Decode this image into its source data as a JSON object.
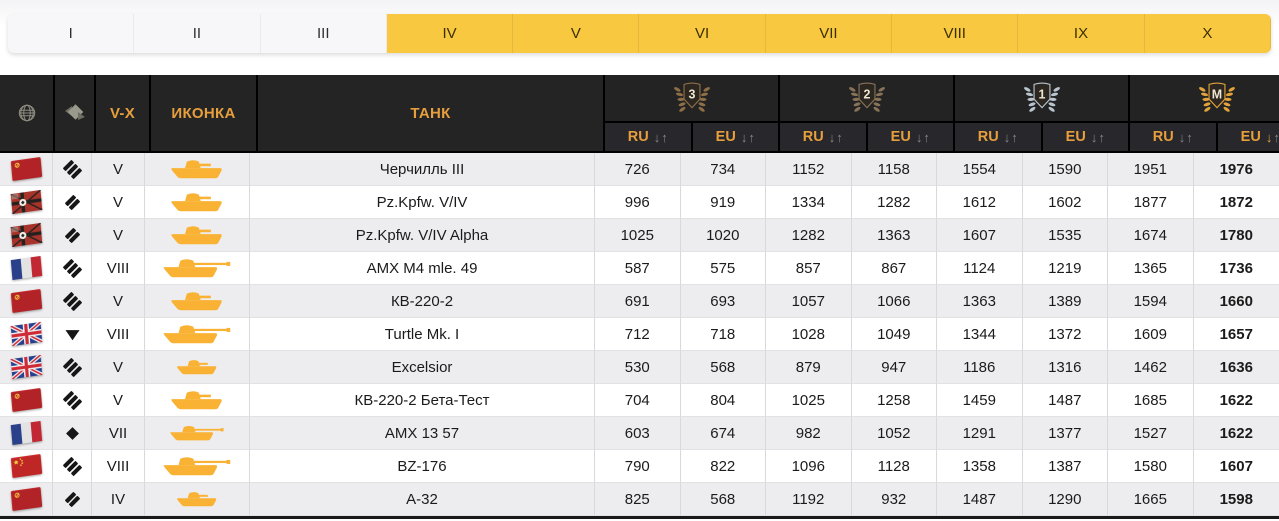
{
  "tabs": [
    {
      "label": "I",
      "active": false
    },
    {
      "label": "II",
      "active": false
    },
    {
      "label": "III",
      "active": false
    },
    {
      "label": "IV",
      "active": true
    },
    {
      "label": "V",
      "active": true
    },
    {
      "label": "VI",
      "active": true
    },
    {
      "label": "VII",
      "active": true
    },
    {
      "label": "VIII",
      "active": true
    },
    {
      "label": "IX",
      "active": true
    },
    {
      "label": "X",
      "active": true
    }
  ],
  "table": {
    "left_headers": {
      "tier": "V-X",
      "icon": "ИКОНКА",
      "tank": "ТАНК"
    },
    "header_icons": [
      "globe-icon",
      "tank-class-icon"
    ],
    "medal_groups": [
      {
        "grade": "3",
        "wreath_color": "#8d6e46",
        "ru_label": "RU",
        "eu_label": "EU"
      },
      {
        "grade": "2",
        "wreath_color": "#877358",
        "ru_label": "RU",
        "eu_label": "EU"
      },
      {
        "grade": "1",
        "wreath_color": "#b9c4ce",
        "ru_label": "RU",
        "eu_label": "EU"
      },
      {
        "grade": "M",
        "wreath_color": "#e2a33c",
        "ru_label": "RU",
        "eu_label": "EU"
      }
    ],
    "sort_arrows": {
      "down": "↓",
      "up": "↑"
    },
    "sort_active": {
      "group": 3,
      "region": "eu",
      "direction": "down"
    },
    "rows": [
      {
        "nation": "ussr",
        "class": "heavy",
        "tier": "V",
        "name": "Черчилль III",
        "icon": "short",
        "icon_size": "md",
        "values": [
          726,
          734,
          1152,
          1158,
          1554,
          1590,
          1951,
          1976
        ]
      },
      {
        "nation": "germany",
        "class": "medium",
        "tier": "V",
        "name": "Pz.Kpfw. V/IV",
        "icon": "short",
        "icon_size": "md",
        "values": [
          996,
          919,
          1334,
          1282,
          1612,
          1602,
          1877,
          1872
        ]
      },
      {
        "nation": "germany",
        "class": "medium",
        "tier": "V",
        "name": "Pz.Kpfw. V/IV Alpha",
        "icon": "short",
        "icon_size": "md",
        "values": [
          1025,
          1020,
          1282,
          1363,
          1607,
          1535,
          1674,
          1780
        ]
      },
      {
        "nation": "france",
        "class": "heavy",
        "tier": "VIII",
        "name": "AMX M4 mle. 49",
        "icon": "long",
        "icon_size": "lg",
        "values": [
          587,
          575,
          857,
          867,
          1124,
          1219,
          1365,
          1736
        ]
      },
      {
        "nation": "ussr",
        "class": "heavy",
        "tier": "V",
        "name": "КВ-220-2",
        "icon": "short",
        "icon_size": "md",
        "values": [
          691,
          693,
          1057,
          1066,
          1363,
          1389,
          1594,
          1660
        ]
      },
      {
        "nation": "uk",
        "class": "td",
        "tier": "VIII",
        "name": "Turtle Mk. I",
        "icon": "long",
        "icon_size": "lg",
        "values": [
          712,
          718,
          1028,
          1049,
          1344,
          1372,
          1609,
          1657
        ]
      },
      {
        "nation": "uk",
        "class": "heavy",
        "tier": "V",
        "name": "Excelsior",
        "icon": "short",
        "icon_size": "sm",
        "values": [
          530,
          568,
          879,
          947,
          1186,
          1316,
          1462,
          1636
        ]
      },
      {
        "nation": "ussr",
        "class": "heavy",
        "tier": "V",
        "name": "КВ-220-2 Бета-Тест",
        "icon": "short",
        "icon_size": "md",
        "values": [
          704,
          804,
          1025,
          1258,
          1459,
          1487,
          1685,
          1622
        ]
      },
      {
        "nation": "france",
        "class": "light",
        "tier": "VII",
        "name": "AMX 13 57",
        "icon": "long",
        "icon_size": "md",
        "values": [
          603,
          674,
          982,
          1052,
          1291,
          1377,
          1527,
          1622
        ]
      },
      {
        "nation": "china",
        "class": "heavy",
        "tier": "VIII",
        "name": "BZ-176",
        "icon": "long",
        "icon_size": "lg",
        "values": [
          790,
          822,
          1096,
          1128,
          1358,
          1387,
          1580,
          1607
        ]
      },
      {
        "nation": "ussr",
        "class": "medium",
        "tier": "IV",
        "name": "А-32",
        "icon": "short",
        "icon_size": "sm",
        "values": [
          825,
          568,
          1192,
          932,
          1487,
          1290,
          1665,
          1598
        ]
      }
    ]
  },
  "colors": {
    "tab_active_yellow": "#F8C840",
    "header_orange": "#E79E3C",
    "tank_icon_yellow": "#F9B233",
    "header_bg": "#242424",
    "row_stripe": "#EDEDEF"
  }
}
